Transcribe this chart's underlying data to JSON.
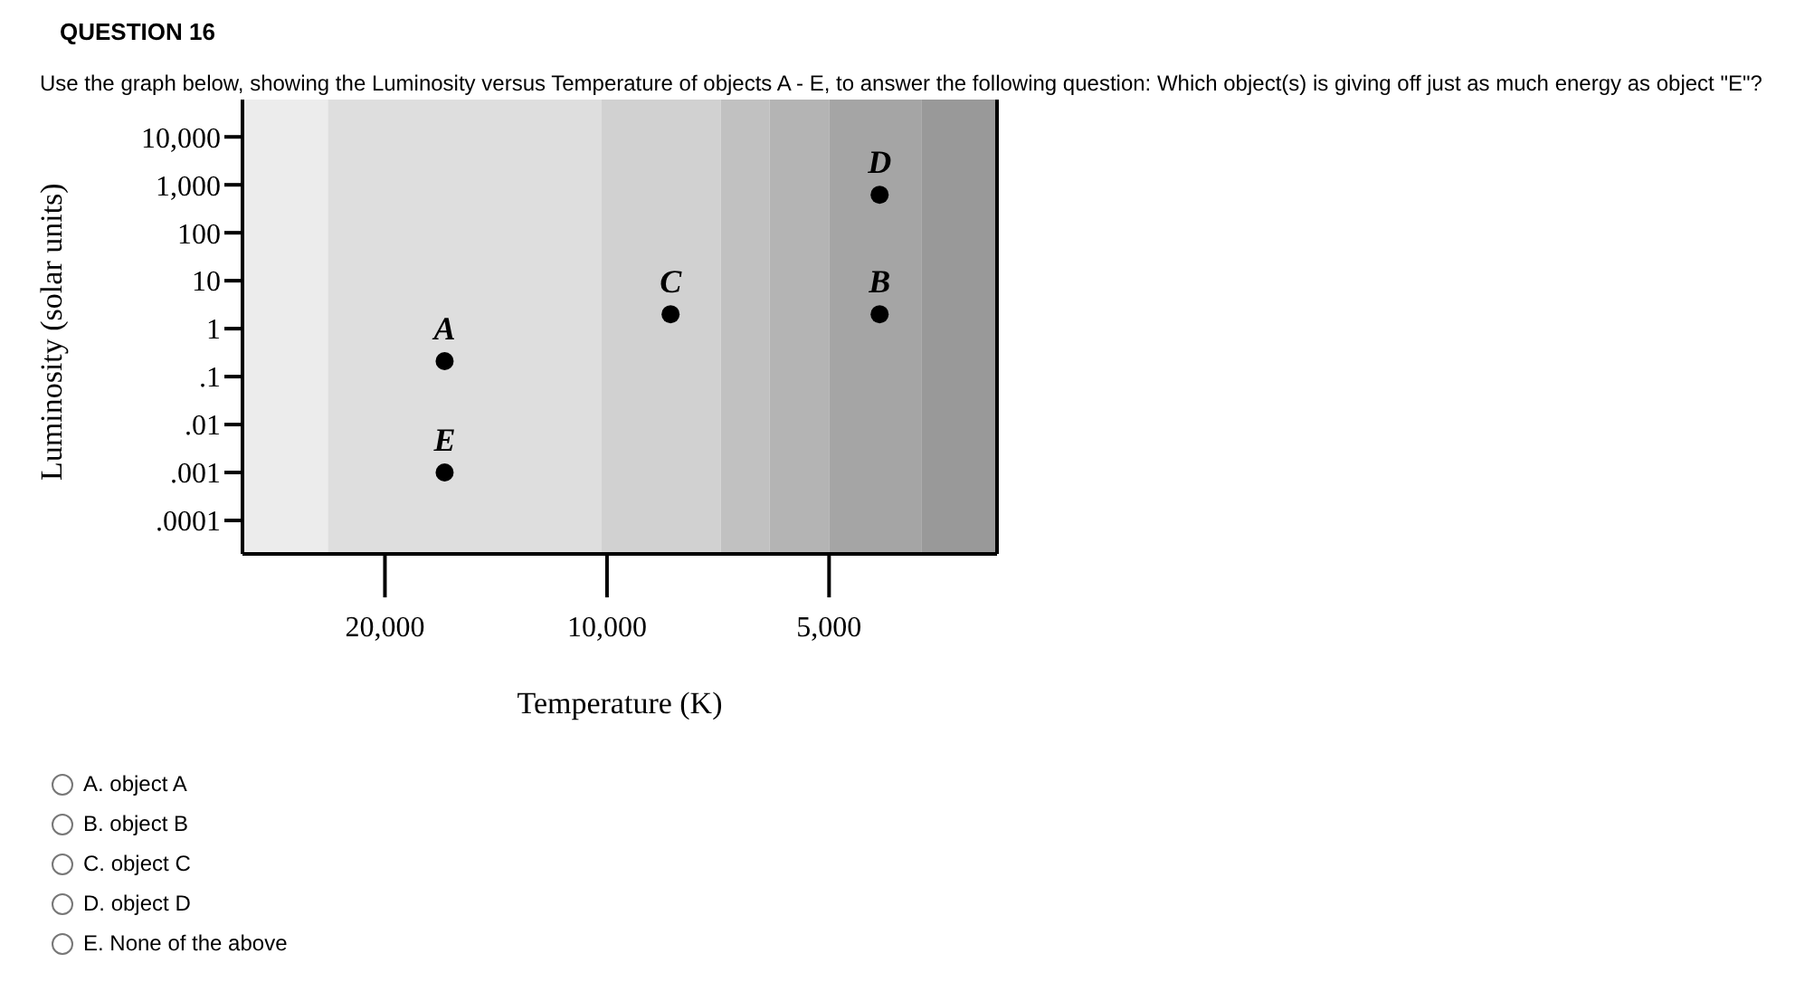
{
  "chart_data": {
    "type": "scatter",
    "title": "QUESTION 16",
    "subtitle": "Use the graph below, showing the Luminosity versus Temperature of objects A - E, to answer the following question: Which object(s) is giving off just as much energy as object \"E\"?",
    "xlabel": "Temperature (K)",
    "ylabel": "Luminosity (solar units)",
    "log": "xy",
    "grid": false,
    "legend": false,
    "marker": "circle",
    "xlim": [
      31200,
      2960
    ],
    "xticks": [
      {
        "value": 20000,
        "label": "20,000"
      },
      {
        "value": 10000,
        "label": "10,000"
      },
      {
        "value": 5000,
        "label": "5,000"
      }
    ],
    "ylim": [
      2e-05,
      60000
    ],
    "yticks": [
      {
        "value": 10000,
        "label": "10,000"
      },
      {
        "value": 1000,
        "label": "1,000"
      },
      100,
      10,
      1,
      {
        "value": 0.1,
        "label": ".1"
      },
      {
        "value": 0.01,
        "label": ".01"
      },
      {
        "value": 0.001,
        "label": ".001"
      },
      {
        "value": 0.0001,
        "label": ".0001"
      }
    ],
    "x": [
      16600,
      4270,
      8200,
      4270,
      16600
    ],
    "values": [
      0.21,
      2,
      2,
      620,
      0.001
    ],
    "color": "#000000",
    "bands": [
      {
        "axis": "x",
        "from": 31200,
        "to": 23900,
        "color": "#ececec"
      },
      {
        "axis": "x",
        "from": 23900,
        "to": 10170,
        "color": "#dedede"
      },
      {
        "axis": "x",
        "from": 10170,
        "to": 7010,
        "color": "#d1d1d1"
      },
      {
        "axis": "x",
        "from": 7010,
        "to": 6020,
        "color": "#c1c1c1"
      },
      {
        "axis": "x",
        "from": 6020,
        "to": 5000,
        "color": "#b4b4b4"
      },
      {
        "axis": "x",
        "from": 5000,
        "to": 3750,
        "color": "#a5a5a5"
      },
      {
        "axis": "x",
        "from": 3750,
        "to": 2960,
        "color": "#999999"
      }
    ],
    "annotations": [
      {
        "text": "A",
        "x": 16600,
        "y": 0.21
      },
      {
        "text": "B",
        "x": 4270,
        "y": 2
      },
      {
        "text": "C",
        "x": 8200,
        "y": 2
      },
      {
        "text": "D",
        "x": 4270,
        "y": 620
      },
      {
        "text": "E",
        "x": 16600,
        "y": 0.001
      },
      "A. object A",
      "B. object B",
      "C. object C",
      "D. object D",
      "E. None of the above"
    ]
  }
}
